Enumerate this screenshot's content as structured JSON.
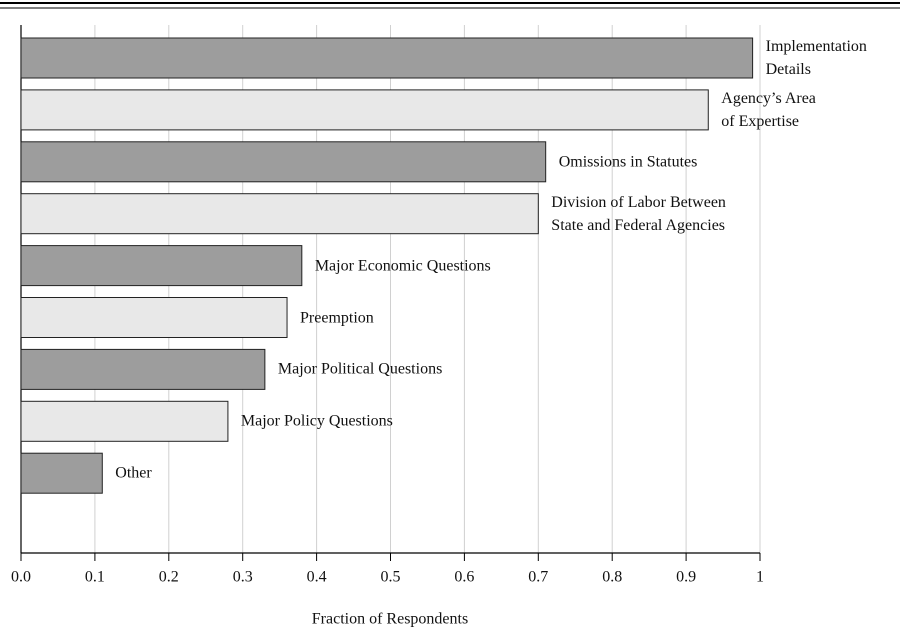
{
  "chart_data": {
    "type": "barh",
    "categories": [
      "Implementation\nDetails",
      "Agency’s Area\nof Expertise",
      "Omissions in Statutes",
      "Division of Labor Between\nState and Federal Agencies",
      "Major Economic Questions",
      "Preemption",
      "Major Political Questions",
      "Major Policy Questions",
      "Other"
    ],
    "values": [
      0.99,
      0.93,
      0.71,
      0.7,
      0.38,
      0.36,
      0.33,
      0.28,
      0.11
    ],
    "colors": [
      "#9d9d9d",
      "#e8e8e8",
      "#9d9d9d",
      "#e8e8e8",
      "#9d9d9d",
      "#e8e8e8",
      "#9d9d9d",
      "#e8e8e8",
      "#9d9d9d"
    ],
    "x_label": "Fraction of Respondents",
    "xlim": [
      0,
      1
    ],
    "xticks": [
      {
        "value": 0,
        "label": "0.0"
      },
      0.1,
      0.2,
      0.3,
      0.4,
      0.5,
      0.6,
      0.7,
      0.8,
      0.9,
      1
    ],
    "grid": true
  }
}
